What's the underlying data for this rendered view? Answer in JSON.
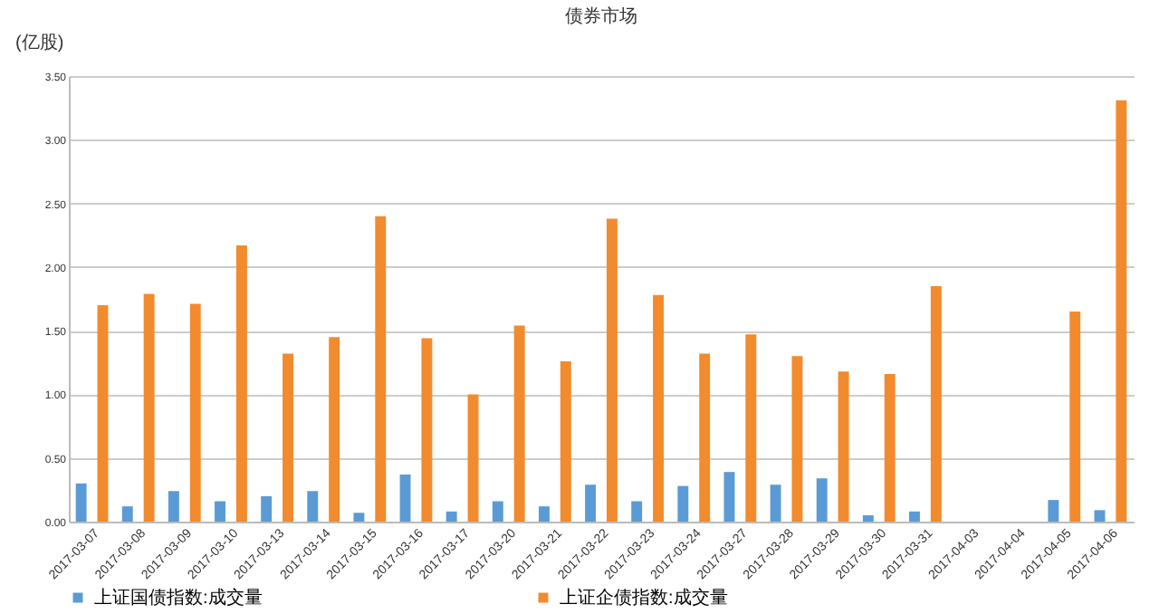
{
  "chart_data": {
    "type": "bar",
    "title": "债券市场",
    "ylabel": "(亿股)",
    "categories": [
      "2017-03-07",
      "2017-03-08",
      "2017-03-09",
      "2017-03-10",
      "2017-03-13",
      "2017-03-14",
      "2017-03-15",
      "2017-03-16",
      "2017-03-17",
      "2017-03-20",
      "2017-03-21",
      "2017-03-22",
      "2017-03-23",
      "2017-03-24",
      "2017-03-27",
      "2017-03-28",
      "2017-03-29",
      "2017-03-30",
      "2017-03-31",
      "2017-04-03",
      "2017-04-04",
      "2017-04-05",
      "2017-04-06"
    ],
    "series": [
      {
        "name": "上证国债指数:成交量",
        "color": "#5b9bd5",
        "values": [
          0.3,
          0.12,
          0.24,
          0.16,
          0.2,
          0.24,
          0.07,
          0.37,
          0.08,
          0.16,
          0.12,
          0.29,
          0.16,
          0.28,
          0.39,
          0.29,
          0.34,
          0.05,
          0.08,
          null,
          null,
          0.17,
          0.09
        ]
      },
      {
        "name": "上证企债指数:成交量",
        "color": "#f28a2e",
        "values": [
          1.7,
          1.79,
          1.71,
          2.17,
          1.32,
          1.45,
          2.4,
          1.44,
          1.0,
          1.54,
          1.26,
          2.38,
          1.78,
          1.32,
          1.47,
          1.3,
          1.18,
          1.16,
          1.85,
          null,
          null,
          1.65,
          3.31
        ]
      }
    ],
    "ylim": [
      0,
      3.5
    ],
    "yticks": [
      {
        "value": 0,
        "label": "0.00"
      },
      {
        "value": 0.5,
        "label": "0.50"
      },
      {
        "value": 1,
        "label": "1.00"
      },
      {
        "value": 1.5,
        "label": "1.50"
      },
      {
        "value": 2,
        "label": "2.00"
      },
      {
        "value": 2.5,
        "label": "2.50"
      },
      {
        "value": 3,
        "label": "3.00"
      },
      {
        "value": 3.5,
        "label": "3.50"
      }
    ],
    "grid": "y",
    "legend": "bottom"
  }
}
